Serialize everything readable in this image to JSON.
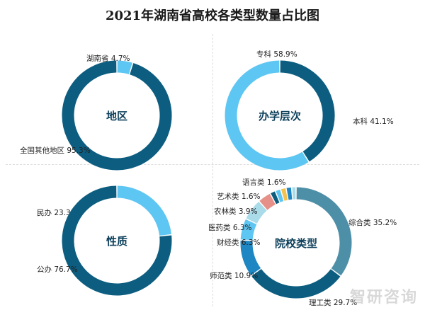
{
  "title": "2021年湖南省高校各类型数量占比图",
  "watermark": "智研咨询",
  "colors": {
    "dark": "#0c5d80",
    "light": "#5ec6f2",
    "mid": "#4e8fa8",
    "pink": "#e6908a",
    "bg": "#ffffff"
  },
  "chart_data": [
    {
      "type": "pie",
      "center_label": "地区",
      "slices": [
        {
          "label": "湖南省 4.7%",
          "value": 4.7,
          "color": "#5ec6f2"
        },
        {
          "label": "全国其他地区 95.3%",
          "value": 95.3,
          "color": "#0c5d80"
        }
      ]
    },
    {
      "type": "pie",
      "center_label": "办学层次",
      "slices": [
        {
          "label": "本科 41.1%",
          "value": 41.1,
          "color": "#0c5d80"
        },
        {
          "label": "专科 58.9%",
          "value": 58.9,
          "color": "#5ec6f2"
        }
      ]
    },
    {
      "type": "pie",
      "center_label": "性质",
      "slices": [
        {
          "label": "民办 23.3%",
          "value": 23.3,
          "color": "#5ec6f2"
        },
        {
          "label": "公办 76.7%",
          "value": 76.7,
          "color": "#0c5d80"
        }
      ]
    },
    {
      "type": "pie",
      "center_label": "院校类型",
      "slices": [
        {
          "label": "综合类 35.2%",
          "value": 35.2,
          "color": "#4e8fa8"
        },
        {
          "label": "理工类 29.7%",
          "value": 29.7,
          "color": "#0c5d80"
        },
        {
          "label": "师范类 10.9%",
          "value": 10.9,
          "color": "#1e86c2"
        },
        {
          "label": "财经类 6.3%",
          "value": 6.3,
          "color": "#5ec6f2"
        },
        {
          "label": "医药类 6.3%",
          "value": 6.3,
          "color": "#a9dbe9"
        },
        {
          "label": "农林类 3.9%",
          "value": 3.9,
          "color": "#e6908a"
        },
        {
          "label": "艺术类 1.6%",
          "value": 1.6,
          "color": "#0c5d80"
        },
        {
          "label": "语言类 1.6%",
          "value": 1.6,
          "color": "#5ec6f2"
        },
        {
          "label": "",
          "value": 1.6,
          "color": "#f2c14e"
        },
        {
          "label": "",
          "value": 1.6,
          "color": "#1e86c2"
        },
        {
          "label": "",
          "value": 1.3,
          "color": "#a9dbe9"
        }
      ]
    }
  ]
}
